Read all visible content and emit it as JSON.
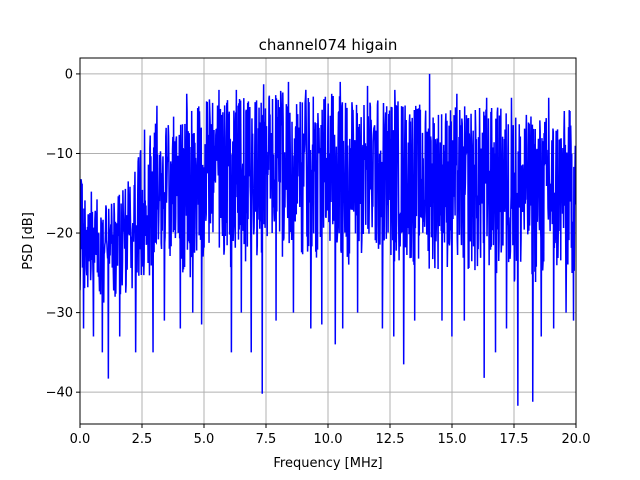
{
  "chart_data": {
    "type": "line",
    "title": "channel074 higain",
    "xlabel": "Frequency [MHz]",
    "ylabel": "PSD [dB]",
    "xlim": [
      0,
      20
    ],
    "ylim": [
      -44,
      2
    ],
    "xticks": [
      0,
      2.5,
      5,
      7.5,
      10,
      12.5,
      15,
      17.5,
      20
    ],
    "xtick_labels": [
      "0.0",
      "2.5",
      "5.0",
      "7.5",
      "10.0",
      "12.5",
      "15.0",
      "17.5",
      "20.0"
    ],
    "yticks": [
      0,
      -10,
      -20,
      -30,
      -40
    ],
    "ytick_labels": [
      "0",
      "−10",
      "−20",
      "−30",
      "−40"
    ],
    "grid": true,
    "series": [
      {
        "color": "#0000ff",
        "points_count": 1400,
        "envelope": {
          "x": [
            0,
            1,
            2,
            2.5,
            3,
            4,
            5,
            6,
            7,
            8,
            9,
            10,
            11,
            12,
            13,
            14,
            15,
            16,
            17,
            18,
            19,
            20
          ],
          "upper": [
            -13,
            -16,
            -13,
            -8,
            -6,
            -5,
            -3,
            -3,
            -3,
            -2,
            -3,
            -2,
            -3,
            -3,
            -3,
            -4,
            -4,
            -4,
            -4,
            -5,
            -5,
            -4
          ],
          "lower": [
            -28,
            -29,
            -28,
            -26,
            -26,
            -26,
            -25,
            -25,
            -24,
            -23,
            -24,
            -24,
            -24,
            -24,
            -24,
            -25,
            -25,
            -26,
            -26,
            -27,
            -27,
            -26
          ]
        },
        "dips": [
          {
            "x": 0.15,
            "y": -32
          },
          {
            "x": 0.55,
            "y": -33
          },
          {
            "x": 0.9,
            "y": -35
          },
          {
            "x": 1.15,
            "y": -38.3
          },
          {
            "x": 1.6,
            "y": -33
          },
          {
            "x": 2.25,
            "y": -35
          },
          {
            "x": 2.95,
            "y": -35
          },
          {
            "x": 3.4,
            "y": -31
          },
          {
            "x": 4.05,
            "y": -32
          },
          {
            "x": 4.55,
            "y": -30
          },
          {
            "x": 4.9,
            "y": -31.5
          },
          {
            "x": 6.1,
            "y": -35
          },
          {
            "x": 6.5,
            "y": -30
          },
          {
            "x": 6.9,
            "y": -35
          },
          {
            "x": 7.35,
            "y": -40.2
          },
          {
            "x": 7.9,
            "y": -31
          },
          {
            "x": 8.6,
            "y": -30
          },
          {
            "x": 9.3,
            "y": -32
          },
          {
            "x": 9.75,
            "y": -31.5
          },
          {
            "x": 10.3,
            "y": -34
          },
          {
            "x": 10.6,
            "y": -32
          },
          {
            "x": 11.2,
            "y": -30
          },
          {
            "x": 11.6,
            "y": -31
          },
          {
            "x": 12.2,
            "y": -32
          },
          {
            "x": 12.65,
            "y": -33
          },
          {
            "x": 13.05,
            "y": -36.5
          },
          {
            "x": 13.5,
            "y": -31
          },
          {
            "x": 14.1,
            "y": -34.5
          },
          {
            "x": 14.6,
            "y": -31
          },
          {
            "x": 15.0,
            "y": -33
          },
          {
            "x": 15.5,
            "y": -31
          },
          {
            "x": 16.3,
            "y": -38.2
          },
          {
            "x": 16.75,
            "y": -35
          },
          {
            "x": 17.2,
            "y": -32
          },
          {
            "x": 17.65,
            "y": -41.7
          },
          {
            "x": 18.25,
            "y": -41.2
          },
          {
            "x": 18.6,
            "y": -33
          },
          {
            "x": 19.1,
            "y": -32
          },
          {
            "x": 19.6,
            "y": -30
          },
          {
            "x": 19.9,
            "y": -31
          }
        ],
        "peaks": [
          {
            "x": 2.6,
            "y": -7
          },
          {
            "x": 3.1,
            "y": -4
          },
          {
            "x": 4.3,
            "y": -2.5
          },
          {
            "x": 5.6,
            "y": -2
          },
          {
            "x": 6.3,
            "y": -2
          },
          {
            "x": 7.4,
            "y": -1.3
          },
          {
            "x": 8.4,
            "y": -1
          },
          {
            "x": 9.1,
            "y": -2
          },
          {
            "x": 10.5,
            "y": -1
          },
          {
            "x": 11.6,
            "y": -1.5
          },
          {
            "x": 12.7,
            "y": -2
          },
          {
            "x": 14.1,
            "y": 0
          },
          {
            "x": 15.2,
            "y": -2.5
          },
          {
            "x": 16.4,
            "y": -3
          },
          {
            "x": 17.4,
            "y": -3
          },
          {
            "x": 18.9,
            "y": -3
          }
        ]
      }
    ]
  }
}
